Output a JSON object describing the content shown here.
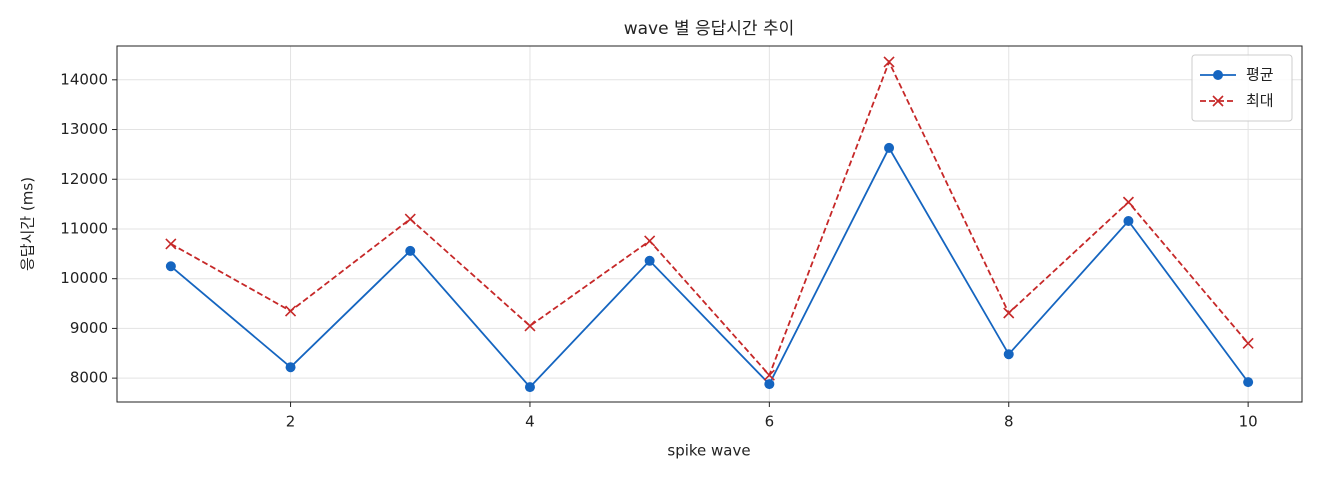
{
  "chart_data": {
    "type": "line",
    "title": "wave 별 응답시간 추이",
    "x_label": "spike wave",
    "y_label": "응답시간 (ms)",
    "x": [
      1,
      2,
      3,
      4,
      5,
      6,
      7,
      8,
      9,
      10
    ],
    "series": [
      {
        "name": "평균",
        "color": "#1565c0",
        "marker": "o",
        "linestyle": "solid",
        "values": [
          10250,
          8220,
          10560,
          7820,
          10360,
          7880,
          12630,
          8480,
          11160,
          7920
        ]
      },
      {
        "name": "최대",
        "color": "#c62828",
        "marker": "x",
        "linestyle": "dashed",
        "values": [
          10700,
          9350,
          11200,
          9050,
          10760,
          8060,
          14360,
          9310,
          11540,
          8700
        ]
      }
    ],
    "xlim": [
      0.55,
      10.45
    ],
    "ylim": [
      7520,
      14680
    ],
    "xticks": [
      2,
      4,
      6,
      8,
      10
    ],
    "yticks": [
      8000,
      9000,
      10000,
      11000,
      12000,
      13000,
      14000
    ],
    "grid": true,
    "legend": "upper right"
  }
}
